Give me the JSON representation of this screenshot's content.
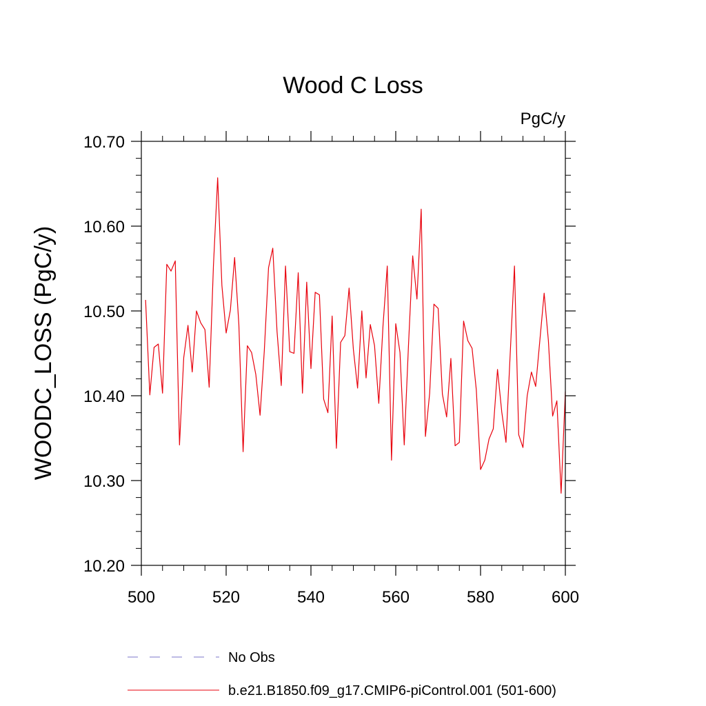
{
  "chart_data": {
    "type": "line",
    "title": "Wood C Loss",
    "units_label": "PgC/y",
    "xlabel": "",
    "ylabel": "WOODC_LOSS  (PgC/y)",
    "xlim": [
      500,
      600
    ],
    "ylim": [
      10.2,
      10.7
    ],
    "x_ticks": [
      500,
      520,
      540,
      560,
      580,
      600
    ],
    "x_tick_labels": [
      "500",
      "520",
      "540",
      "560",
      "580",
      "600"
    ],
    "y_ticks": [
      10.2,
      10.3,
      10.4,
      10.5,
      10.6,
      10.7
    ],
    "y_tick_labels": [
      "10.20",
      "10.30",
      "10.40",
      "10.50",
      "10.60",
      "10.70"
    ],
    "grid": false,
    "legend_position": "bottom",
    "colors": {
      "model": "#e8000b",
      "obs": "#7b74c9",
      "axis": "#000000"
    },
    "series": [
      {
        "name": "b.e21.B1850.f09_g17.CMIP6-piControl.001 (501-600)",
        "style": "solid",
        "x": [
          501,
          502,
          503,
          504,
          505,
          506,
          507,
          508,
          509,
          510,
          511,
          512,
          513,
          514,
          515,
          516,
          517,
          518,
          519,
          520,
          521,
          522,
          523,
          524,
          525,
          526,
          527,
          528,
          529,
          530,
          531,
          532,
          533,
          534,
          535,
          536,
          537,
          538,
          539,
          540,
          541,
          542,
          543,
          544,
          545,
          546,
          547,
          548,
          549,
          550,
          551,
          552,
          553,
          554,
          555,
          556,
          557,
          558,
          559,
          560,
          561,
          562,
          563,
          564,
          565,
          566,
          567,
          568,
          569,
          570,
          571,
          572,
          573,
          574,
          575,
          576,
          577,
          578,
          579,
          580,
          581,
          582,
          583,
          584,
          585,
          586,
          587,
          588,
          589,
          590,
          591,
          592,
          593,
          594,
          595,
          596,
          597,
          598,
          599,
          600
        ],
        "y": [
          10.513,
          10.401,
          10.457,
          10.461,
          10.403,
          10.555,
          10.547,
          10.559,
          10.342,
          10.445,
          10.483,
          10.428,
          10.5,
          10.486,
          10.478,
          10.41,
          10.553,
          10.657,
          10.53,
          10.474,
          10.501,
          10.563,
          10.484,
          10.334,
          10.459,
          10.451,
          10.425,
          10.377,
          10.453,
          10.551,
          10.574,
          10.476,
          10.412,
          10.553,
          10.452,
          10.45,
          10.545,
          10.403,
          10.534,
          10.432,
          10.522,
          10.519,
          10.396,
          10.38,
          10.494,
          10.338,
          10.463,
          10.471,
          10.527,
          10.455,
          10.409,
          10.5,
          10.421,
          10.484,
          10.459,
          10.391,
          10.483,
          10.553,
          10.324,
          10.485,
          10.451,
          10.342,
          10.459,
          10.565,
          10.514,
          10.62,
          10.352,
          10.403,
          10.508,
          10.503,
          10.402,
          10.375,
          10.444,
          10.341,
          10.345,
          10.488,
          10.465,
          10.456,
          10.407,
          10.313,
          10.324,
          10.349,
          10.361,
          10.431,
          10.381,
          10.345,
          10.45,
          10.553,
          10.354,
          10.339,
          10.4,
          10.428,
          10.411,
          10.466,
          10.521,
          10.465,
          10.376,
          10.394,
          10.285,
          10.405
        ]
      },
      {
        "name": "No Obs",
        "style": "dashed",
        "x": [],
        "y": []
      }
    ]
  }
}
